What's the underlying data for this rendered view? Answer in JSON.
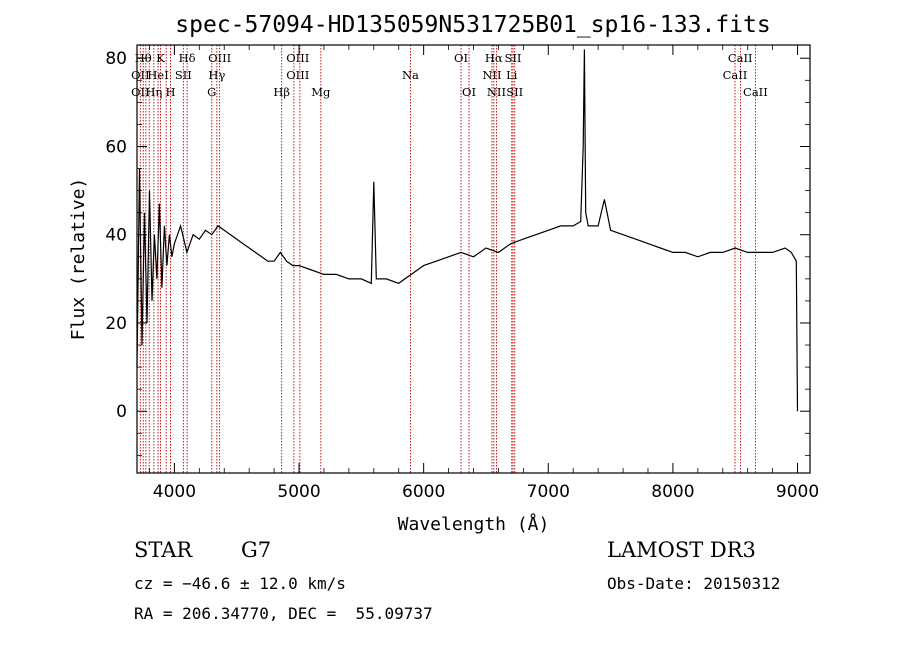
{
  "chart_data": {
    "type": "line",
    "title": "spec-57094-HD135059N531725B01_sp16-133.fits",
    "xlabel": "Wavelength (Å)",
    "ylabel": "Flux (relative)",
    "xlim": [
      3700,
      9100
    ],
    "ylim": [
      -14,
      83
    ],
    "grid": false,
    "x_ticks": [
      4000,
      5000,
      6000,
      7000,
      8000,
      9000
    ],
    "y_ticks": [
      0,
      20,
      40,
      60,
      80
    ],
    "line_color": "#000000",
    "series": [
      {
        "x": [
          3700,
          3720,
          3740,
          3760,
          3780,
          3800,
          3820,
          3840,
          3860,
          3880,
          3900,
          3920,
          3940,
          3960,
          3980,
          4000,
          4050,
          4100,
          4150,
          4200,
          4250,
          4300,
          4350,
          4400,
          4450,
          4500,
          4550,
          4600,
          4650,
          4700,
          4750,
          4800,
          4850,
          4900,
          4950,
          5000,
          5100,
          5200,
          5300,
          5400,
          5500,
          5580,
          5600,
          5620,
          5700,
          5800,
          5900,
          6000,
          6100,
          6200,
          6300,
          6400,
          6500,
          6600,
          6700,
          6800,
          6900,
          7000,
          7100,
          7200,
          7260,
          7280,
          7290,
          7300,
          7320,
          7400,
          7450,
          7500,
          7600,
          7700,
          7800,
          7900,
          8000,
          8100,
          8200,
          8300,
          8400,
          8500,
          8600,
          8700,
          8800,
          8900,
          8950,
          8990,
          9000
        ],
        "values": [
          10,
          55,
          15,
          45,
          20,
          50,
          25,
          40,
          30,
          47,
          28,
          42,
          33,
          40,
          35,
          38,
          42,
          36,
          40,
          39,
          41,
          40,
          42,
          41,
          40,
          39,
          38,
          37,
          36,
          35,
          34,
          34,
          36,
          34,
          33,
          33,
          32,
          31,
          31,
          30,
          30,
          29,
          52,
          30,
          30,
          29,
          31,
          33,
          34,
          35,
          36,
          35,
          37,
          36,
          38,
          39,
          40,
          41,
          42,
          42,
          43,
          60,
          82,
          45,
          42,
          42,
          48,
          41,
          40,
          39,
          38,
          37,
          36,
          36,
          35,
          36,
          36,
          37,
          36,
          36,
          36,
          37,
          36,
          34,
          0
        ]
      }
    ],
    "lines": [
      {
        "x": 3727,
        "name": "OII"
      },
      {
        "x": 3750,
        "name": "Hθ"
      },
      {
        "x": 3771,
        "name": "Hη"
      },
      {
        "x": 3798,
        "name": ""
      },
      {
        "x": 3835,
        "name": "Hη"
      },
      {
        "x": 3869,
        "name": "HeI"
      },
      {
        "x": 3889,
        "name": "K"
      },
      {
        "x": 3934,
        "name": "K"
      },
      {
        "x": 3969,
        "name": "H"
      },
      {
        "x": 4072,
        "name": "SII"
      },
      {
        "x": 4102,
        "name": "Hδ"
      },
      {
        "x": 4300,
        "name": "G"
      },
      {
        "x": 4341,
        "name": "Hγ"
      },
      {
        "x": 4363,
        "name": "OIII"
      },
      {
        "x": 4861,
        "name": "Hβ"
      },
      {
        "x": 4959,
        "name": "OIII"
      },
      {
        "x": 5007,
        "name": "OIII"
      },
      {
        "x": 5175,
        "name": "Mg"
      },
      {
        "x": 5894,
        "name": "Na"
      },
      {
        "x": 6300,
        "name": "OI"
      },
      {
        "x": 6364,
        "name": "OI"
      },
      {
        "x": 6548,
        "name": "NII"
      },
      {
        "x": 6563,
        "name": "Hα"
      },
      {
        "x": 6584,
        "name": "NII"
      },
      {
        "x": 6707,
        "name": "Li"
      },
      {
        "x": 6717,
        "name": "SII"
      },
      {
        "x": 6731,
        "name": "SII"
      },
      {
        "x": 8498,
        "name": "CaII"
      },
      {
        "x": 8542,
        "name": "CaII"
      },
      {
        "x": 8662,
        "name": "CaII"
      }
    ],
    "line_labels": [
      {
        "x": 3750,
        "row": 0,
        "text": "Hθ"
      },
      {
        "x": 3889,
        "row": 0,
        "text": "K"
      },
      {
        "x": 4102,
        "row": 0,
        "text": "Hδ"
      },
      {
        "x": 4363,
        "row": 0,
        "text": "OIII"
      },
      {
        "x": 4990,
        "row": 0,
        "text": "OIII"
      },
      {
        "x": 6300,
        "row": 0,
        "text": "OI"
      },
      {
        "x": 6563,
        "row": 0,
        "text": "Hα"
      },
      {
        "x": 6717,
        "row": 0,
        "text": "SII"
      },
      {
        "x": 8540,
        "row": 0,
        "text": "CaII"
      },
      {
        "x": 3727,
        "row": 1,
        "text": "OII"
      },
      {
        "x": 3869,
        "row": 1,
        "text": "HeI"
      },
      {
        "x": 4072,
        "row": 1,
        "text": "SII"
      },
      {
        "x": 4341,
        "row": 1,
        "text": "Hγ"
      },
      {
        "x": 4990,
        "row": 1,
        "text": "OIII"
      },
      {
        "x": 5894,
        "row": 1,
        "text": "Na"
      },
      {
        "x": 6548,
        "row": 1,
        "text": "NII"
      },
      {
        "x": 6707,
        "row": 1,
        "text": "Li"
      },
      {
        "x": 8498,
        "row": 1,
        "text": "CaII"
      },
      {
        "x": 3727,
        "row": 2,
        "text": "OII"
      },
      {
        "x": 3835,
        "row": 2,
        "text": "Hη"
      },
      {
        "x": 3969,
        "row": 2,
        "text": "H"
      },
      {
        "x": 4300,
        "row": 2,
        "text": "G"
      },
      {
        "x": 4861,
        "row": 2,
        "text": "Hβ"
      },
      {
        "x": 5175,
        "row": 2,
        "text": "Mg"
      },
      {
        "x": 6364,
        "row": 2,
        "text": "OI"
      },
      {
        "x": 6584,
        "row": 2,
        "text": "NII"
      },
      {
        "x": 6731,
        "row": 2,
        "text": "SII"
      },
      {
        "x": 8662,
        "row": 2,
        "text": "CaII"
      }
    ],
    "line_color_markers": "#c00000"
  },
  "info": {
    "object_type": "STAR",
    "subclass": "G7",
    "survey": "LAMOST DR3",
    "cz": "cz = −46.6 ± 12.0 km/s",
    "obs_date": "Obs-Date: 20150312",
    "coords": "RA = 206.34770, DEC =  55.09737"
  }
}
